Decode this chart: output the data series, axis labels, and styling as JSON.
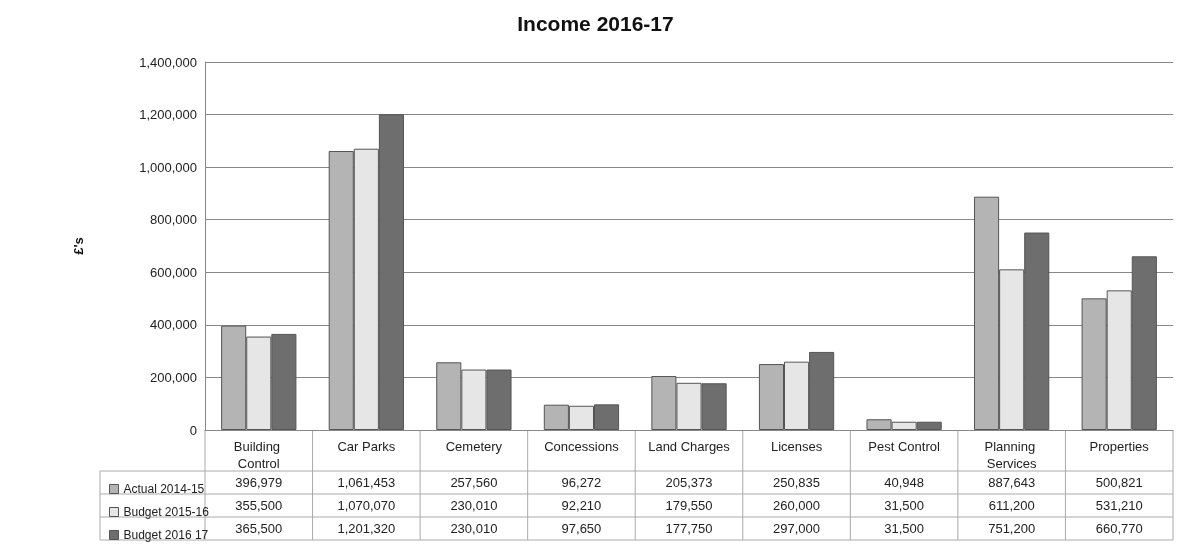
{
  "chart_data": {
    "type": "bar",
    "title": "Income 2016-17",
    "ylabel": "£'s",
    "categories": [
      "Building Control",
      "Car Parks",
      "Cemetery",
      "Concessions",
      "Land Charges",
      "Licenses",
      "Pest Control",
      "Planning Services",
      "Properties"
    ],
    "series": [
      {
        "name": "Actual 2014-15",
        "color": "#b4b4b4",
        "values": [
          396979,
          1061453,
          257560,
          96272,
          205373,
          250835,
          40948,
          887643,
          500821
        ],
        "value_labels": [
          "396,979",
          "1,061,453",
          "257,560",
          "96,272",
          "205,373",
          "250,835",
          "40,948",
          "887,643",
          "500,821"
        ]
      },
      {
        "name": "Budget 2015-16",
        "color": "#e6e6e6",
        "values": [
          355500,
          1070070,
          230010,
          92210,
          179550,
          260000,
          31500,
          611200,
          531210
        ],
        "value_labels": [
          "355,500",
          "1,070,070",
          "230,010",
          "92,210",
          "179,550",
          "260,000",
          "31,500",
          "611,200",
          "531,210"
        ]
      },
      {
        "name": "Budget 2016 17",
        "color": "#6e6e6e",
        "values": [
          365500,
          1201320,
          230010,
          97650,
          177750,
          297000,
          31500,
          751200,
          660770
        ],
        "value_labels": [
          "365,500",
          "1,201,320",
          "230,010",
          "97,650",
          "177,750",
          "297,000",
          "31,500",
          "751,200",
          "660,770"
        ]
      }
    ],
    "ylim": [
      0,
      1400000
    ],
    "yticks": [
      0,
      {
        "value": 200000,
        "label": "200,000"
      },
      {
        "value": 400000,
        "label": "400,000"
      },
      {
        "value": 600000,
        "label": "600,000"
      },
      {
        "value": 800000,
        "label": "800,000"
      },
      {
        "value": 1000000,
        "label": "1,000,000"
      },
      {
        "value": 1200000,
        "label": "1,200,000"
      },
      {
        "value": 1400000,
        "label": "1,400,000"
      }
    ],
    "grid": "y",
    "legend": "bottom left"
  }
}
